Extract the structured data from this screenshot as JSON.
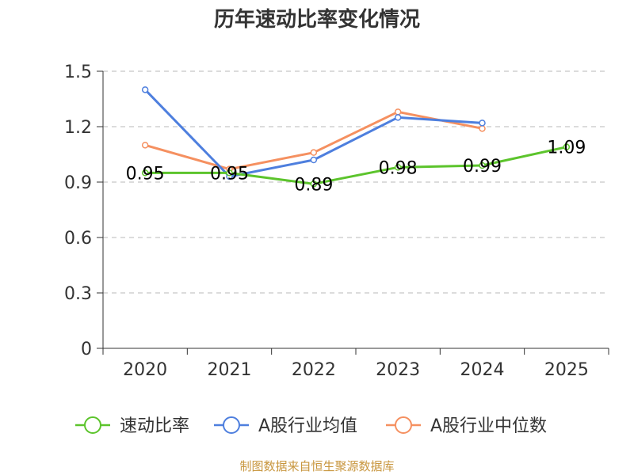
{
  "chart_data": {
    "type": "line",
    "title": "历年速动比率变化情况",
    "categories": [
      "2020",
      "2021",
      "2022",
      "2023",
      "2024",
      "2025"
    ],
    "ylim": [
      0,
      1.5
    ],
    "yticks": [
      "0",
      "0.3",
      "0.6",
      "0.9",
      "1.2",
      "1.5"
    ],
    "grid": true,
    "legend_position": "bottom",
    "series": [
      {
        "name": "速动比率",
        "color": "#5cc42c",
        "values": [
          0.95,
          0.95,
          0.89,
          0.98,
          0.99,
          1.09
        ],
        "labels": [
          "0.95",
          "0.95",
          "0.89",
          "0.98",
          "0.99",
          "1.09"
        ]
      },
      {
        "name": "A股行业均值",
        "color": "#4e7fde",
        "values": [
          1.4,
          0.93,
          1.02,
          1.25,
          1.22,
          null
        ]
      },
      {
        "name": "A股行业中位数",
        "color": "#f59060",
        "values": [
          1.1,
          0.97,
          1.06,
          1.28,
          1.19,
          null
        ]
      }
    ]
  },
  "source": "制图数据来自恒生聚源数据库"
}
